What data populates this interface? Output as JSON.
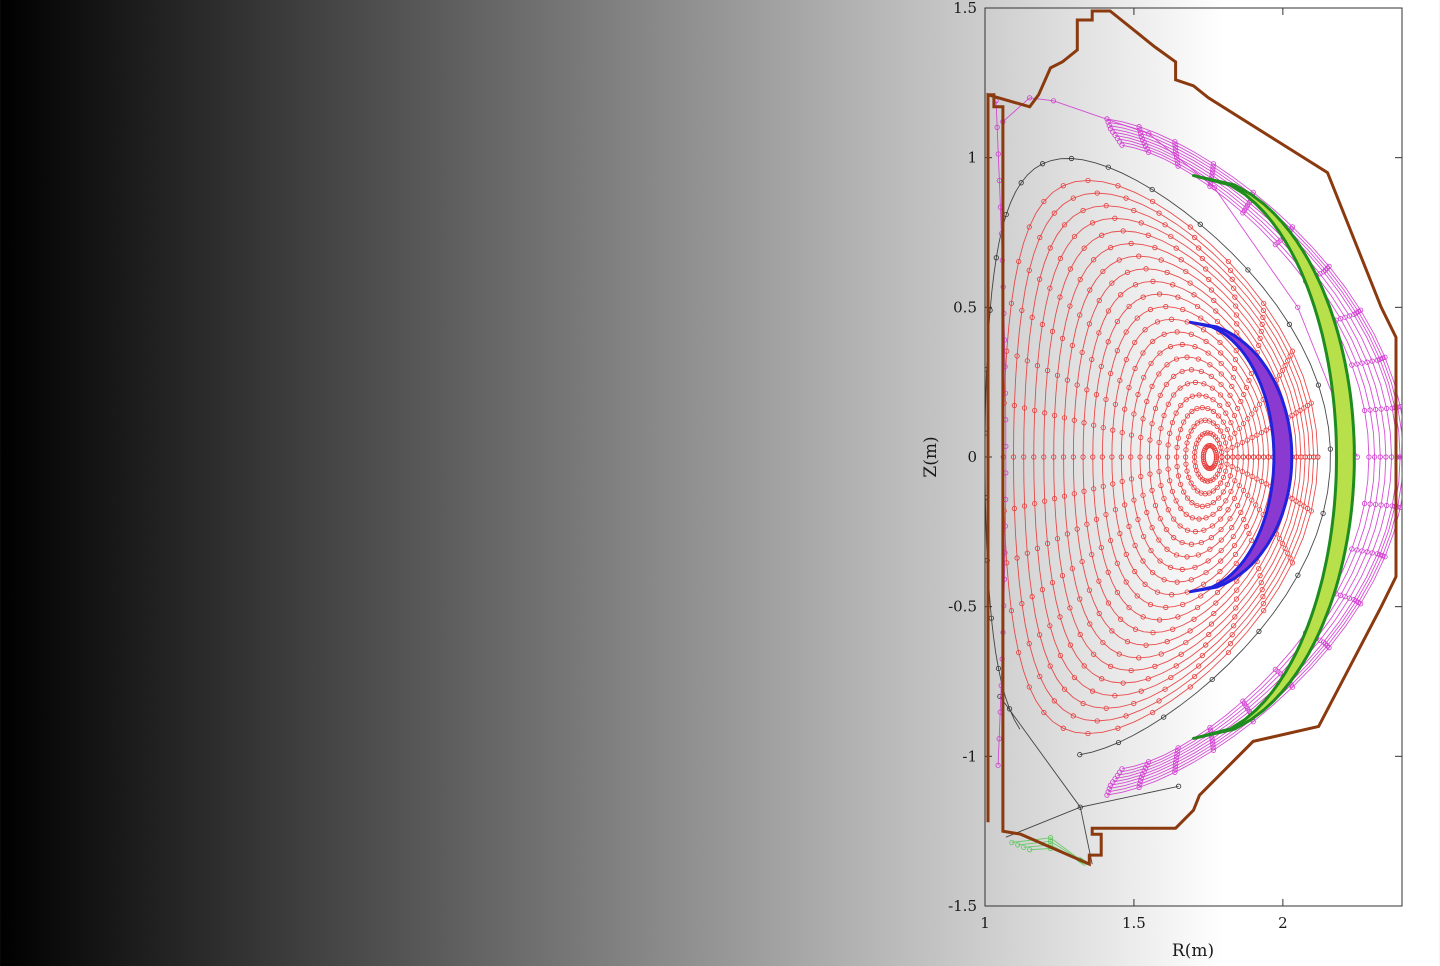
{
  "chart_data": {
    "type": "line",
    "title": "",
    "xlabel": "R(m)",
    "ylabel": "Z(m)",
    "xlim": [
      1.0,
      2.4
    ],
    "ylim": [
      -1.5,
      1.5
    ],
    "x_ticks": [
      1,
      1.5,
      2
    ],
    "x_tick_labels": [
      "1",
      "1.5",
      "2"
    ],
    "y_ticks": [
      -1.5,
      -1,
      -0.5,
      0,
      0.5,
      1,
      1.5
    ],
    "y_tick_labels": [
      "-1.5",
      "-1",
      "-0.5",
      "0",
      "0.5",
      "1",
      "1.5"
    ],
    "grid": false,
    "colors": {
      "wall": "#8b3a0f",
      "core_flux": "#e83a3a",
      "separatrix": "#333333",
      "sol_flux": "#d23bd2",
      "private_flux": "#5cc85c",
      "outer_band": "#1f8c1f",
      "inner_band": "#2222dd"
    },
    "magnetic_axis": {
      "R": 1.76,
      "Z": 0.0
    },
    "separatrix": {
      "xpoint": {
        "R": 1.32,
        "Z": -1.17
      },
      "outer_midplane_R": 2.25,
      "top_Z": 0.97
    },
    "core_surfaces": {
      "count": 22,
      "rho_min": 0.04,
      "rho_max": 0.96
    },
    "sol_surfaces": {
      "count": 9,
      "R_outer_midplane": [
        2.26,
        2.28,
        2.3,
        2.32,
        2.34,
        2.36,
        2.37,
        2.38,
        2.39
      ]
    },
    "wall": {
      "R": [
        1.01,
        1.01,
        1.03,
        1.03,
        1.06,
        1.06,
        1.12,
        1.35,
        1.35,
        1.39,
        1.39,
        1.36,
        1.36,
        1.64,
        1.7,
        1.72,
        1.9,
        2.12,
        2.33,
        2.38,
        2.38,
        2.33,
        2.15,
        1.75,
        1.7,
        1.64,
        1.64,
        1.57,
        1.42,
        1.36,
        1.36,
        1.31,
        1.31,
        1.26,
        1.22,
        1.18,
        1.15,
        1.01
      ],
      "Z": [
        -1.22,
        1.21,
        1.21,
        1.17,
        1.17,
        -1.25,
        -1.26,
        -1.36,
        -1.33,
        -1.33,
        -1.26,
        -1.26,
        -1.24,
        -1.24,
        -1.18,
        -1.13,
        -0.95,
        -0.9,
        -0.5,
        -0.4,
        0.4,
        0.5,
        0.95,
        1.2,
        1.24,
        1.26,
        1.32,
        1.37,
        1.49,
        1.49,
        1.46,
        1.46,
        1.36,
        1.32,
        1.3,
        1.21,
        1.17,
        1.21
      ]
    },
    "inner_band": {
      "R_mid": 2.03,
      "R_tip": 1.69,
      "Z_tip": 0.45
    },
    "outer_band": {
      "R_mid": 2.24,
      "R_tip": 1.7,
      "Z_tip": 0.94
    }
  }
}
